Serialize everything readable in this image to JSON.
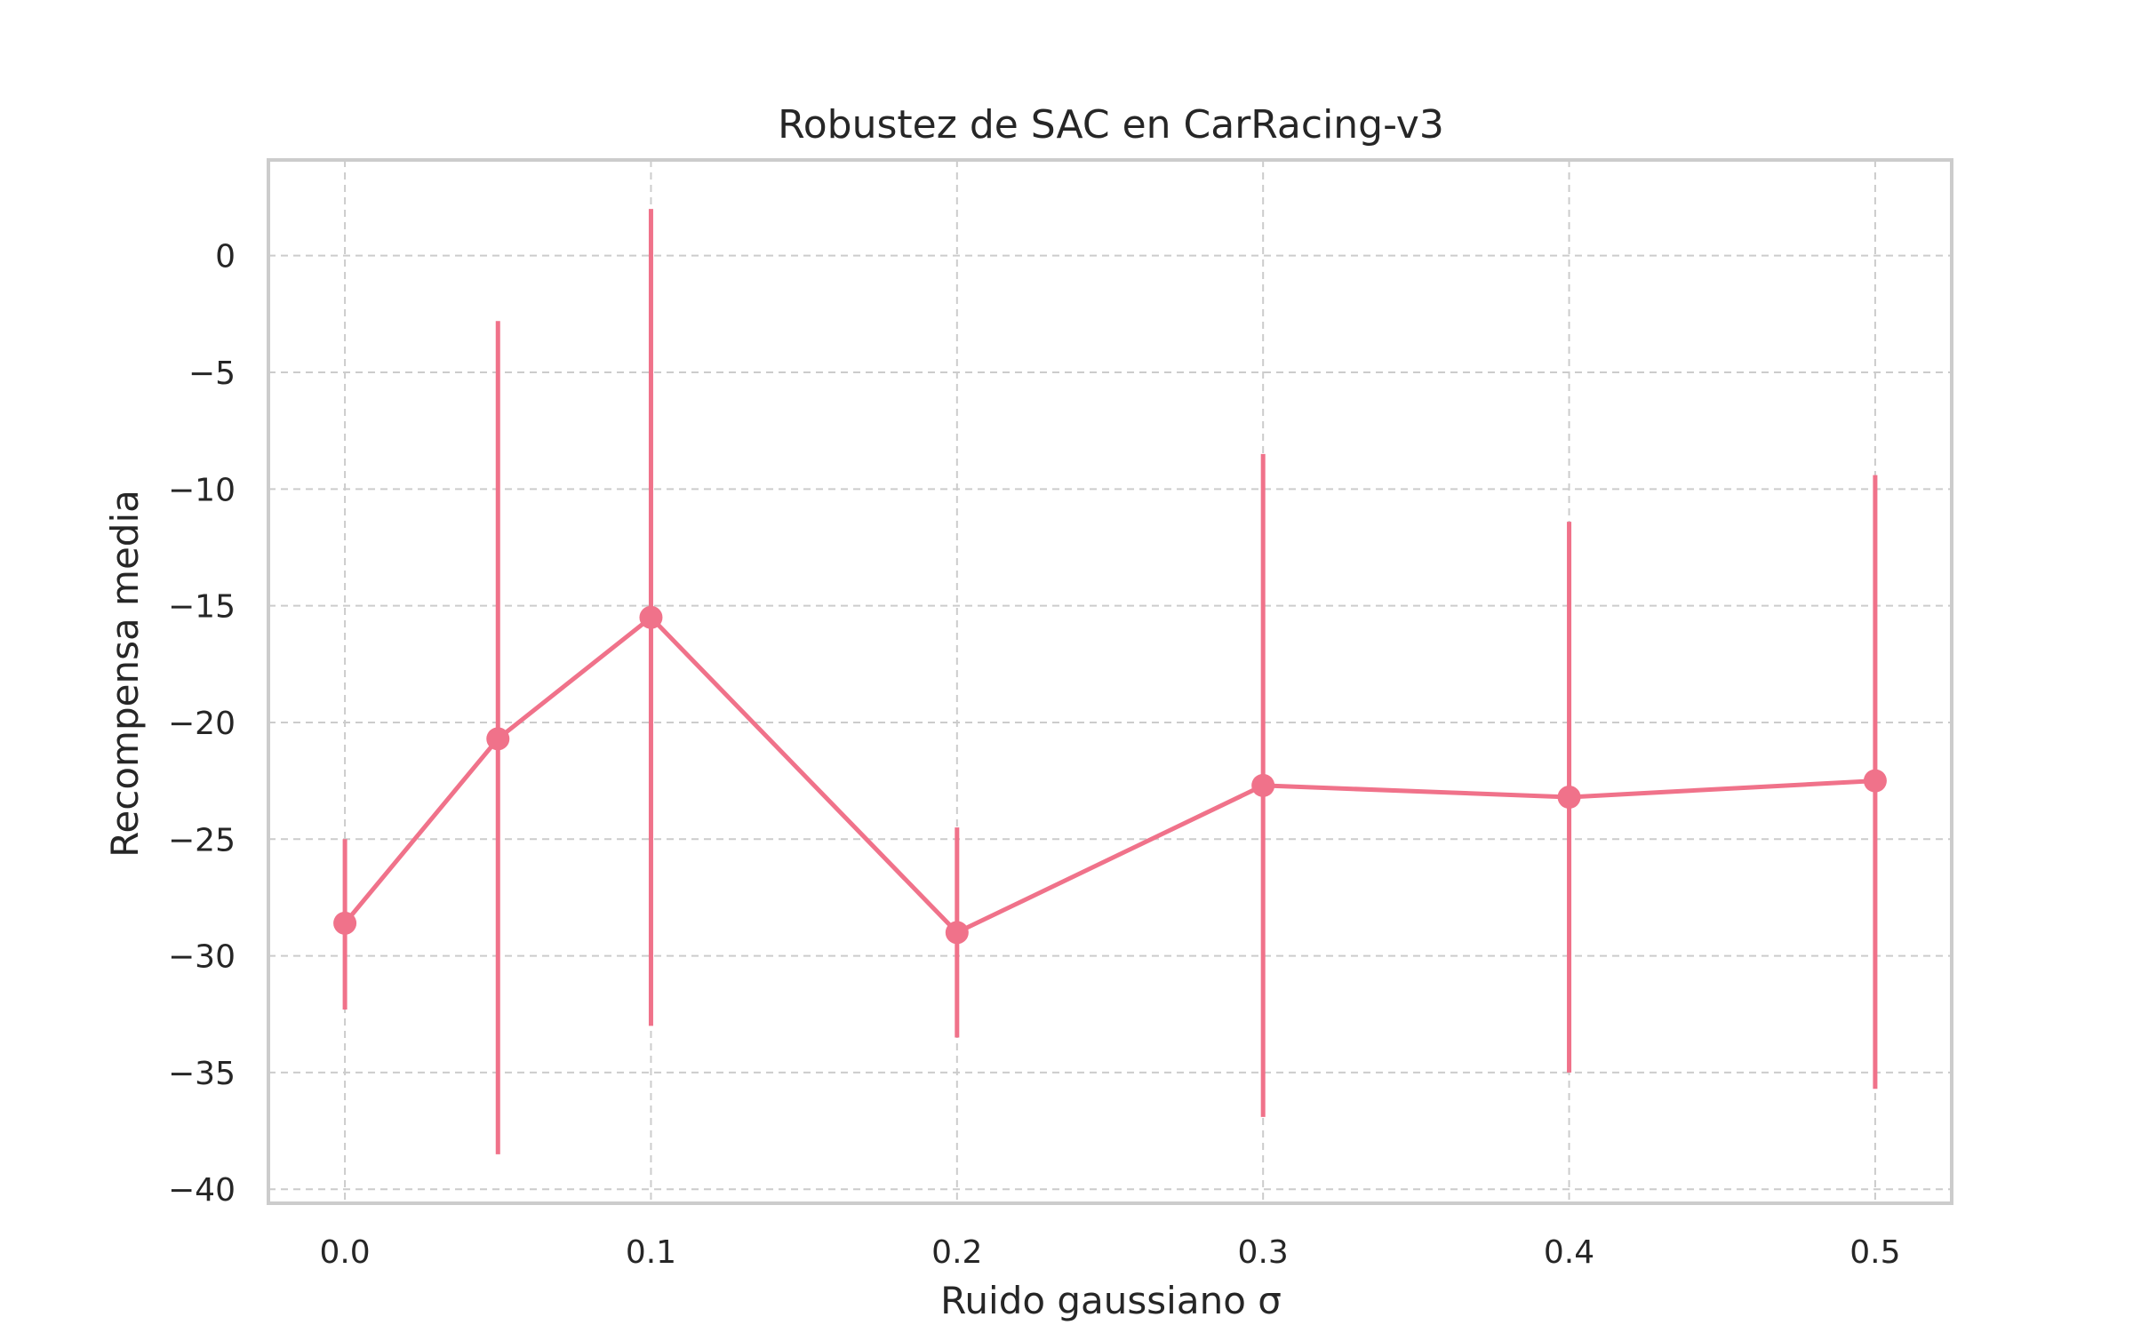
{
  "chart_data": {
    "type": "line",
    "title": "Robustez de SAC en CarRacing-v3",
    "xlabel": "Ruido gaussiano σ",
    "ylabel": "Recompensa media",
    "x": [
      0.0,
      0.05,
      0.1,
      0.2,
      0.3,
      0.4,
      0.5
    ],
    "series": [
      {
        "values": [
          -28.6,
          -20.7,
          -15.5,
          -29.0,
          -22.7,
          -23.2,
          -22.5
        ],
        "error_low": [
          -32.3,
          -38.5,
          -33.0,
          -33.5,
          -36.9,
          -35.0,
          -35.7
        ],
        "error_high": [
          -25.0,
          -2.8,
          2.0,
          -24.5,
          -8.5,
          -11.4,
          -9.4
        ]
      }
    ],
    "xticks": [
      0.0,
      0.1,
      0.2,
      0.3,
      0.4,
      0.5
    ],
    "xtick_labels": [
      "0.0",
      "0.1",
      "0.2",
      "0.3",
      "0.4",
      "0.5"
    ],
    "yticks": [
      0,
      -5,
      -10,
      -15,
      -20,
      -25,
      -30,
      -35,
      -40
    ],
    "ytick_labels": [
      "0",
      "−5",
      "−10",
      "−15",
      "−20",
      "−25",
      "−30",
      "−35",
      "−40"
    ],
    "xlim": [
      -0.025,
      0.525
    ],
    "ylim": [
      -40.6,
      4.1
    ],
    "grid": true,
    "color": "#f0728a"
  }
}
